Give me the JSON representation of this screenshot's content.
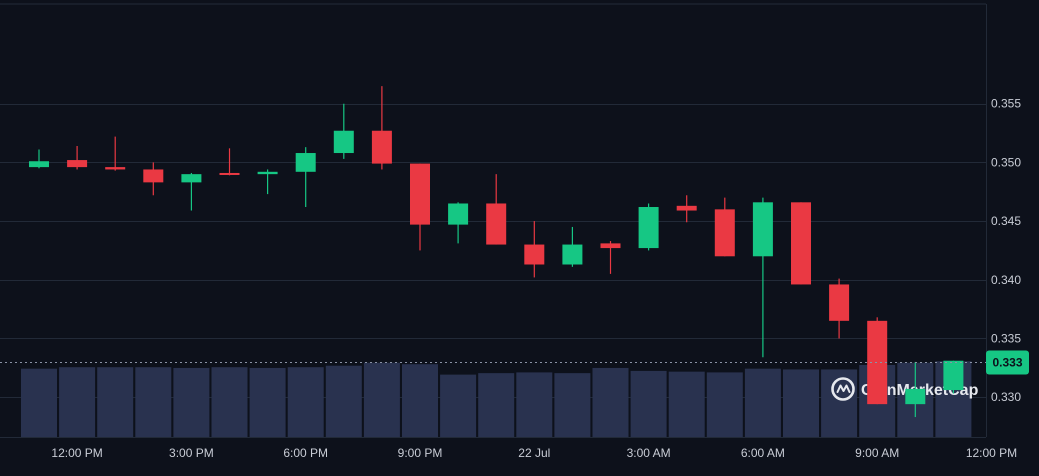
{
  "watermark": {
    "brand": "CoinMarketCap",
    "logo_icon": "coinmarketcap-logo-icon"
  },
  "colors": {
    "background": "#0d111b",
    "grid": "#222a38",
    "up": "#16c784",
    "down": "#ea3943",
    "volume": "#29324f",
    "axis_text": "#c9cdd6",
    "current_price_bg": "#16c784"
  },
  "current_price": {
    "value": 0.333,
    "label": "0.333"
  },
  "chart_data": {
    "type": "candlestick",
    "title": "",
    "xlabel": "",
    "ylabel": "",
    "ylim": [
      0.3266,
      0.3635
    ],
    "y_ticks": [
      0.33,
      0.335,
      0.34,
      0.345,
      0.35,
      0.355
    ],
    "y_tick_labels": [
      "0.330",
      "0.335",
      "0.340",
      "0.345",
      "0.350",
      "0.355"
    ],
    "x_ticks": [
      {
        "label": "12:00 PM",
        "index": 1
      },
      {
        "label": "3:00 PM",
        "index": 4
      },
      {
        "label": "6:00 PM",
        "index": 7
      },
      {
        "label": "9:00 PM",
        "index": 10
      },
      {
        "label": "22 Jul",
        "index": 13
      },
      {
        "label": "3:00 AM",
        "index": 16
      },
      {
        "label": "6:00 AM",
        "index": 19
      },
      {
        "label": "9:00 AM",
        "index": 22
      },
      {
        "label": "12:00 PM",
        "index": 25
      }
    ],
    "grid": true,
    "candles": [
      {
        "open": 0.3496,
        "high": 0.3511,
        "low": 0.3495,
        "close": 0.3501
      },
      {
        "open": 0.3502,
        "high": 0.3514,
        "low": 0.3494,
        "close": 0.3496
      },
      {
        "open": 0.3496,
        "high": 0.3522,
        "low": 0.3493,
        "close": 0.3494
      },
      {
        "open": 0.3494,
        "high": 0.35,
        "low": 0.3472,
        "close": 0.3483
      },
      {
        "open": 0.3483,
        "high": 0.3491,
        "low": 0.3459,
        "close": 0.349
      },
      {
        "open": 0.3491,
        "high": 0.3512,
        "low": 0.3489,
        "close": 0.349
      },
      {
        "open": 0.349,
        "high": 0.3494,
        "low": 0.3473,
        "close": 0.3492
      },
      {
        "open": 0.3492,
        "high": 0.3513,
        "low": 0.3462,
        "close": 0.3508
      },
      {
        "open": 0.3508,
        "high": 0.355,
        "low": 0.3503,
        "close": 0.3527
      },
      {
        "open": 0.3527,
        "high": 0.3565,
        "low": 0.3494,
        "close": 0.3499
      },
      {
        "open": 0.3499,
        "high": 0.3499,
        "low": 0.3425,
        "close": 0.3447
      },
      {
        "open": 0.3447,
        "high": 0.3466,
        "low": 0.3431,
        "close": 0.3465
      },
      {
        "open": 0.3465,
        "high": 0.349,
        "low": 0.343,
        "close": 0.343
      },
      {
        "open": 0.343,
        "high": 0.345,
        "low": 0.3402,
        "close": 0.3413
      },
      {
        "open": 0.3413,
        "high": 0.3445,
        "low": 0.3411,
        "close": 0.343
      },
      {
        "open": 0.3431,
        "high": 0.3433,
        "low": 0.3405,
        "close": 0.3427
      },
      {
        "open": 0.3427,
        "high": 0.3465,
        "low": 0.3425,
        "close": 0.3462
      },
      {
        "open": 0.3463,
        "high": 0.3472,
        "low": 0.3449,
        "close": 0.3459
      },
      {
        "open": 0.346,
        "high": 0.347,
        "low": 0.342,
        "close": 0.342
      },
      {
        "open": 0.342,
        "high": 0.347,
        "low": 0.3334,
        "close": 0.3466
      },
      {
        "open": 0.3466,
        "high": 0.3466,
        "low": 0.3396,
        "close": 0.3396
      },
      {
        "open": 0.3396,
        "high": 0.3401,
        "low": 0.335,
        "close": 0.3365
      },
      {
        "open": 0.3365,
        "high": 0.3368,
        "low": 0.3294,
        "close": 0.3294
      },
      {
        "open": 0.3294,
        "high": 0.333,
        "low": 0.3283,
        "close": 0.3307
      },
      {
        "open": 0.3306,
        "high": 0.3331,
        "low": 0.3303,
        "close": 0.3331
      }
    ],
    "volume_relative": [
      0.92,
      0.94,
      0.94,
      0.94,
      0.93,
      0.94,
      0.93,
      0.94,
      0.96,
      1.0,
      0.98,
      0.84,
      0.86,
      0.87,
      0.86,
      0.93,
      0.89,
      0.88,
      0.87,
      0.92,
      0.91,
      0.91,
      0.97,
      1.0,
      1.02
    ]
  }
}
